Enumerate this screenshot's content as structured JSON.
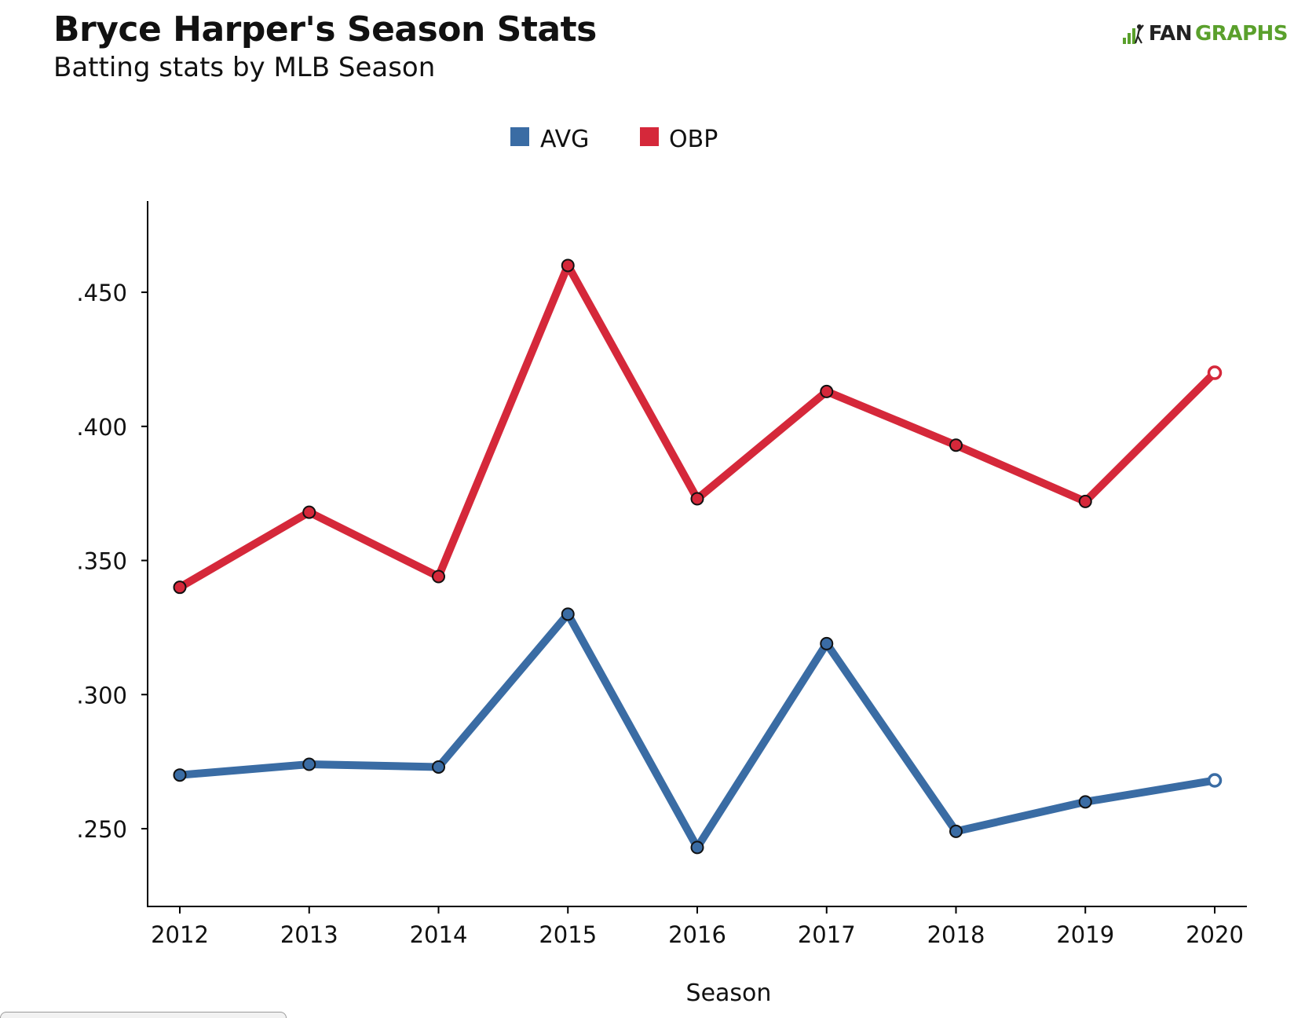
{
  "header": {
    "title": "Bryce Harper's Season Stats",
    "subtitle": "Batting stats by MLB Season"
  },
  "brand": {
    "fan": "FAN",
    "graphs": "GRAPHS",
    "icon": "fangraphs-logo-icon"
  },
  "colors": {
    "avg": "#3a6ca4",
    "obp": "#d5283a",
    "axis": "#000000",
    "text": "#111111",
    "brand_green": "#5aa02c"
  },
  "chart_data": {
    "type": "line",
    "title": "Bryce Harper's Season Stats",
    "subtitle": "Batting stats by MLB Season",
    "xlabel": "Season",
    "ylabel": "",
    "x": [
      "2012",
      "2013",
      "2014",
      "2015",
      "2016",
      "2017",
      "2018",
      "2019",
      "2020"
    ],
    "y_ticks": [
      0.25,
      0.3,
      0.35,
      0.4,
      0.45
    ],
    "y_tick_labels": [
      ".250",
      ".300",
      ".350",
      ".400",
      ".450"
    ],
    "ylim": [
      0.221,
      0.484
    ],
    "grid": false,
    "legend_position": "top-center",
    "series": [
      {
        "name": "AVG",
        "color": "#3a6ca4",
        "values": [
          0.27,
          0.274,
          0.273,
          0.33,
          0.243,
          0.319,
          0.249,
          0.26,
          0.268
        ],
        "hollow_last_point": true
      },
      {
        "name": "OBP",
        "color": "#d5283a",
        "values": [
          0.34,
          0.368,
          0.344,
          0.46,
          0.373,
          0.413,
          0.393,
          0.372,
          0.42
        ],
        "hollow_last_point": true
      }
    ]
  }
}
